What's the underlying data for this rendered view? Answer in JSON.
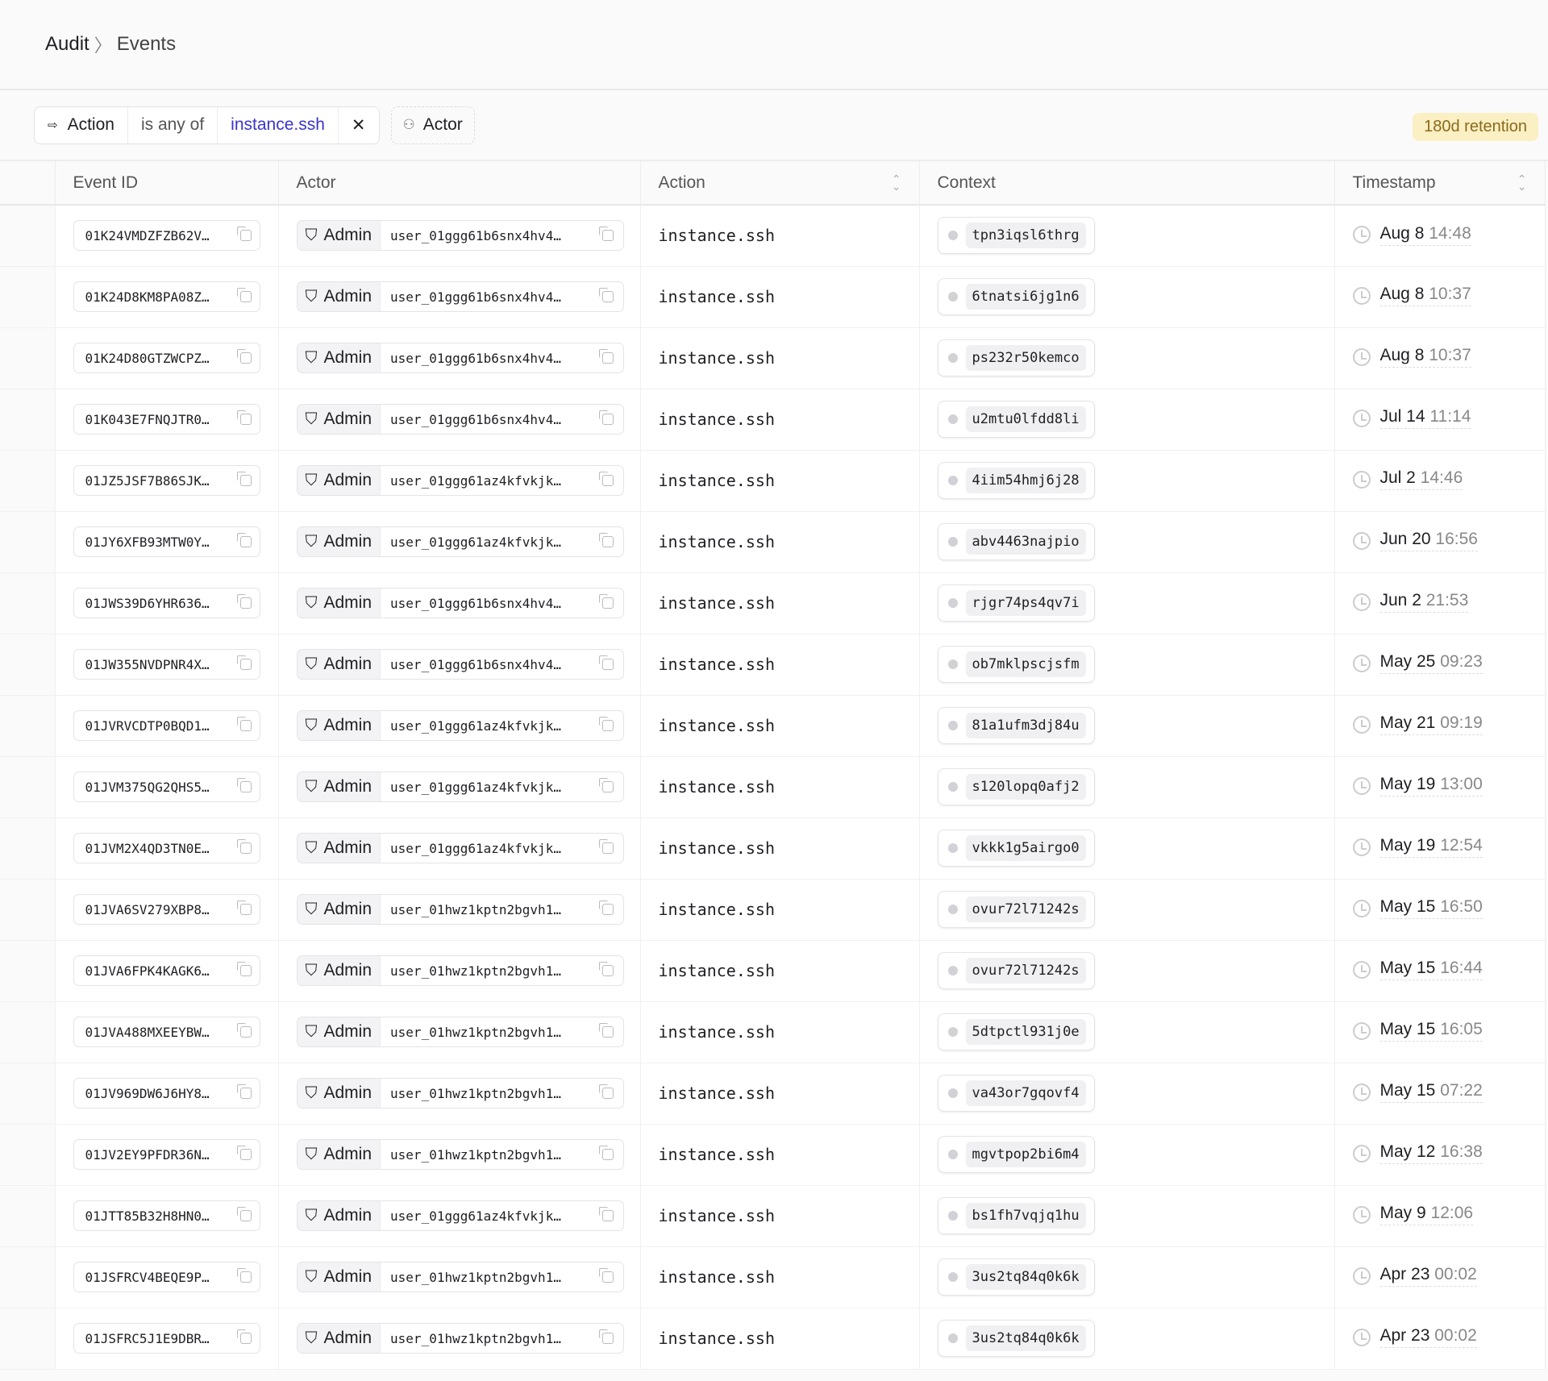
{
  "breadcrumb": {
    "root": "Audit",
    "current": "Events"
  },
  "filter": {
    "field": "Action",
    "operator": "is any of",
    "value": "instance.ssh",
    "add_label": "Actor",
    "retention": "180d retention"
  },
  "columns": [
    "Event ID",
    "Actor",
    "Action",
    "Context",
    "Timestamp"
  ],
  "colors": {
    "accent": "#3b35c9",
    "retention_bg": "#fbefc4"
  },
  "rows": [
    {
      "id": "01K24VMDZFZB62V…",
      "role": "Admin",
      "user": "user_01ggg61b6snx4hv4…",
      "action": "instance.ssh",
      "context": "tpn3iqsl6thrg",
      "date": "Aug 8",
      "time": "14:48"
    },
    {
      "id": "01K24D8KM8PA08Z…",
      "role": "Admin",
      "user": "user_01ggg61b6snx4hv4…",
      "action": "instance.ssh",
      "context": "6tnatsi6jg1n6",
      "date": "Aug 8",
      "time": "10:37"
    },
    {
      "id": "01K24D80GTZWCPZ…",
      "role": "Admin",
      "user": "user_01ggg61b6snx4hv4…",
      "action": "instance.ssh",
      "context": "ps232r50kemco",
      "date": "Aug 8",
      "time": "10:37"
    },
    {
      "id": "01K043E7FNQJTR0…",
      "role": "Admin",
      "user": "user_01ggg61b6snx4hv4…",
      "action": "instance.ssh",
      "context": "u2mtu0lfdd8li",
      "date": "Jul 14",
      "time": "11:14"
    },
    {
      "id": "01JZ5JSF7B86SJK…",
      "role": "Admin",
      "user": "user_01ggg61az4kfvkjk…",
      "action": "instance.ssh",
      "context": "4iim54hmj6j28",
      "date": "Jul 2",
      "time": "14:46"
    },
    {
      "id": "01JY6XFB93MTW0Y…",
      "role": "Admin",
      "user": "user_01ggg61az4kfvkjk…",
      "action": "instance.ssh",
      "context": "abv4463najpio",
      "date": "Jun 20",
      "time": "16:56"
    },
    {
      "id": "01JWS39D6YHR636…",
      "role": "Admin",
      "user": "user_01ggg61b6snx4hv4…",
      "action": "instance.ssh",
      "context": "rjgr74ps4qv7i",
      "date": "Jun 2",
      "time": "21:53"
    },
    {
      "id": "01JW355NVDPNR4X…",
      "role": "Admin",
      "user": "user_01ggg61b6snx4hv4…",
      "action": "instance.ssh",
      "context": "ob7mklpscjsfm",
      "date": "May 25",
      "time": "09:23"
    },
    {
      "id": "01JVRVCDTP0BQD1…",
      "role": "Admin",
      "user": "user_01ggg61az4kfvkjk…",
      "action": "instance.ssh",
      "context": "81a1ufm3dj84u",
      "date": "May 21",
      "time": "09:19"
    },
    {
      "id": "01JVM375QG2QHS5…",
      "role": "Admin",
      "user": "user_01ggg61az4kfvkjk…",
      "action": "instance.ssh",
      "context": "s120lopq0afj2",
      "date": "May 19",
      "time": "13:00"
    },
    {
      "id": "01JVM2X4QD3TN0E…",
      "role": "Admin",
      "user": "user_01ggg61az4kfvkjk…",
      "action": "instance.ssh",
      "context": "vkkk1g5airgo0",
      "date": "May 19",
      "time": "12:54"
    },
    {
      "id": "01JVA6SV279XBP8…",
      "role": "Admin",
      "user": "user_01hwz1kptn2bgvh1…",
      "action": "instance.ssh",
      "context": "ovur72l71242s",
      "date": "May 15",
      "time": "16:50"
    },
    {
      "id": "01JVA6FPK4KAGK6…",
      "role": "Admin",
      "user": "user_01hwz1kptn2bgvh1…",
      "action": "instance.ssh",
      "context": "ovur72l71242s",
      "date": "May 15",
      "time": "16:44"
    },
    {
      "id": "01JVA488MXEEYBW…",
      "role": "Admin",
      "user": "user_01hwz1kptn2bgvh1…",
      "action": "instance.ssh",
      "context": "5dtpctl931j0e",
      "date": "May 15",
      "time": "16:05"
    },
    {
      "id": "01JV969DW6J6HY8…",
      "role": "Admin",
      "user": "user_01hwz1kptn2bgvh1…",
      "action": "instance.ssh",
      "context": "va43or7gqovf4",
      "date": "May 15",
      "time": "07:22"
    },
    {
      "id": "01JV2EY9PFDR36N…",
      "role": "Admin",
      "user": "user_01hwz1kptn2bgvh1…",
      "action": "instance.ssh",
      "context": "mgvtpop2bi6m4",
      "date": "May 12",
      "time": "16:38"
    },
    {
      "id": "01JTT85B32H8HN0…",
      "role": "Admin",
      "user": "user_01ggg61az4kfvkjk…",
      "action": "instance.ssh",
      "context": "bs1fh7vqjq1hu",
      "date": "May 9",
      "time": "12:06"
    },
    {
      "id": "01JSFRCV4BEQE9P…",
      "role": "Admin",
      "user": "user_01hwz1kptn2bgvh1…",
      "action": "instance.ssh",
      "context": "3us2tq84q0k6k",
      "date": "Apr 23",
      "time": "00:02"
    },
    {
      "id": "01JSFRC5J1E9DBR…",
      "role": "Admin",
      "user": "user_01hwz1kptn2bgvh1…",
      "action": "instance.ssh",
      "context": "3us2tq84q0k6k",
      "date": "Apr 23",
      "time": "00:02"
    }
  ]
}
